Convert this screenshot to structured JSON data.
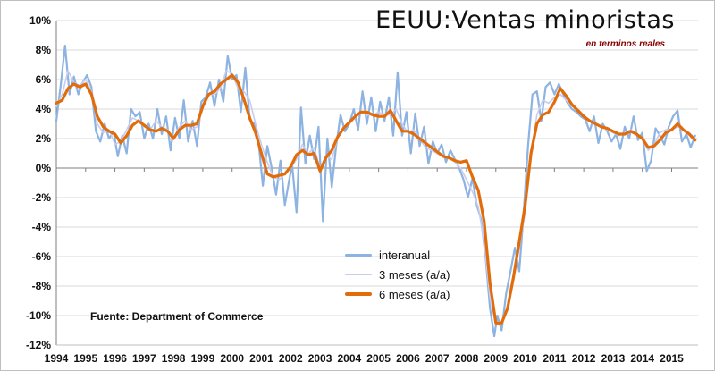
{
  "chart_data": {
    "type": "line",
    "title": "EEUU:Ventas minoristas",
    "subtitle": "en terminos reales",
    "source": "Fuente: Department of Commerce",
    "ylim": [
      -12,
      10
    ],
    "y_ticks": [
      "10%",
      "8%",
      "6%",
      "4%",
      "2%",
      "0%",
      "-2%",
      "-4%",
      "-6%",
      "-8%",
      "-10%",
      "-12%"
    ],
    "x_range": [
      1994.0,
      2015.9
    ],
    "x_ticks": [
      "1994",
      "1995",
      "1996",
      "1997",
      "1998",
      "1999",
      "2000",
      "2001",
      "2002",
      "2003",
      "2004",
      "2005",
      "2006",
      "2007",
      "2008",
      "2009",
      "2010",
      "2011",
      "2012",
      "2013",
      "2014",
      "2015"
    ],
    "grid": "horizontal",
    "legend_position": "center",
    "series": [
      {
        "name": "interanual",
        "color": "#8db3e2",
        "width": 2.2,
        "x": [
          1994.0,
          1994.15,
          1994.3,
          1994.45,
          1994.6,
          1994.75,
          1994.9,
          1995.05,
          1995.2,
          1995.35,
          1995.5,
          1995.65,
          1995.8,
          1995.95,
          1996.1,
          1996.25,
          1996.4,
          1996.55,
          1996.7,
          1996.85,
          1997.0,
          1997.15,
          1997.3,
          1997.45,
          1997.6,
          1997.75,
          1997.9,
          1998.05,
          1998.2,
          1998.35,
          1998.5,
          1998.65,
          1998.8,
          1998.95,
          1999.1,
          1999.25,
          1999.4,
          1999.55,
          1999.7,
          1999.85,
          2000.0,
          2000.15,
          2000.3,
          2000.45,
          2000.6,
          2000.75,
          2000.9,
          2001.05,
          2001.2,
          2001.35,
          2001.5,
          2001.65,
          2001.8,
          2001.95,
          2002.05,
          2002.2,
          2002.35,
          2002.5,
          2002.65,
          2002.8,
          2002.95,
          2003.1,
          2003.25,
          2003.4,
          2003.55,
          2003.7,
          2003.85,
          2004.0,
          2004.15,
          2004.3,
          2004.45,
          2004.6,
          2004.75,
          2004.9,
          2005.05,
          2005.2,
          2005.35,
          2005.5,
          2005.65,
          2005.8,
          2005.95,
          2006.1,
          2006.25,
          2006.4,
          2006.55,
          2006.7,
          2006.85,
          2007.0,
          2007.15,
          2007.3,
          2007.45,
          2007.6,
          2007.75,
          2007.9,
          2008.05,
          2008.2,
          2008.35,
          2008.5,
          2008.65,
          2008.8,
          2008.95,
          2009.05,
          2009.2,
          2009.35,
          2009.5,
          2009.65,
          2009.8,
          2009.95,
          2010.1,
          2010.25,
          2010.4,
          2010.55,
          2010.7,
          2010.85,
          2011.0,
          2011.15,
          2011.3,
          2011.45,
          2011.6,
          2011.75,
          2011.9,
          2012.05,
          2012.2,
          2012.35,
          2012.5,
          2012.65,
          2012.8,
          2012.95,
          2013.1,
          2013.25,
          2013.4,
          2013.55,
          2013.7,
          2013.85,
          2014.0,
          2014.15,
          2014.3,
          2014.45,
          2014.6,
          2014.75,
          2014.9,
          2015.05,
          2015.2,
          2015.35,
          2015.5,
          2015.65,
          2015.8
        ],
        "values": [
          3.2,
          5.6,
          8.3,
          5.0,
          6.2,
          5.0,
          5.8,
          6.3,
          5.5,
          2.5,
          1.8,
          3.0,
          2.0,
          2.5,
          0.8,
          2.2,
          1.0,
          4.0,
          3.5,
          3.8,
          2.0,
          3.0,
          2.0,
          4.0,
          2.3,
          3.5,
          1.2,
          3.4,
          2.0,
          4.6,
          1.8,
          3.2,
          1.5,
          4.5,
          4.8,
          5.8,
          4.2,
          6.0,
          4.5,
          7.6,
          6.0,
          6.3,
          3.8,
          6.8,
          3.3,
          3.0,
          1.8,
          -1.2,
          1.5,
          0.0,
          -1.8,
          0.5,
          -2.5,
          -0.8,
          0.2,
          -3.0,
          4.1,
          0.3,
          2.2,
          0.6,
          2.8,
          -3.6,
          2.0,
          -1.3,
          1.5,
          3.6,
          2.5,
          3.0,
          4.0,
          2.6,
          5.2,
          3.0,
          4.8,
          2.5,
          4.5,
          3.2,
          4.8,
          2.2,
          6.5,
          2.2,
          3.8,
          1.0,
          3.7,
          1.5,
          2.8,
          0.3,
          1.8,
          1.0,
          1.6,
          0.4,
          1.2,
          0.6,
          0.0,
          -0.8,
          -2.0,
          -0.7,
          -2.5,
          -3.5,
          -6.0,
          -9.5,
          -11.4,
          -10.0,
          -11.0,
          -8.5,
          -7.0,
          -5.4,
          -7.0,
          -3.0,
          1.5,
          5.0,
          5.2,
          3.2,
          5.5,
          5.8,
          5.0,
          5.7,
          5.0,
          4.4,
          4.0,
          3.8,
          3.5,
          3.3,
          2.5,
          3.5,
          1.7,
          3.0,
          2.5,
          1.8,
          2.3,
          1.3,
          2.8,
          2.0,
          3.5,
          1.9,
          2.4,
          -0.2,
          0.5,
          2.7,
          2.2,
          1.6,
          2.8,
          3.5,
          3.9,
          1.8,
          2.3,
          1.4,
          2.2
        ],
        "dash": ""
      },
      {
        "name": "3 meses (a/a)",
        "color": "#c8cdf0",
        "width": 1.6,
        "x": [
          1994.0,
          1994.2,
          1994.4,
          1994.6,
          1994.8,
          1995.0,
          1995.2,
          1995.4,
          1995.6,
          1995.8,
          1996.0,
          1996.2,
          1996.4,
          1996.6,
          1996.8,
          1997.0,
          1997.2,
          1997.4,
          1997.6,
          1997.8,
          1998.0,
          1998.2,
          1998.4,
          1998.6,
          1998.8,
          1999.0,
          1999.2,
          1999.4,
          1999.6,
          1999.8,
          2000.0,
          2000.2,
          2000.4,
          2000.6,
          2000.8,
          2001.0,
          2001.2,
          2001.4,
          2001.6,
          2001.8,
          2002.0,
          2002.2,
          2002.4,
          2002.6,
          2002.8,
          2003.0,
          2003.2,
          2003.4,
          2003.6,
          2003.8,
          2004.0,
          2004.2,
          2004.4,
          2004.6,
          2004.8,
          2005.0,
          2005.2,
          2005.4,
          2005.6,
          2005.8,
          2006.0,
          2006.2,
          2006.4,
          2006.6,
          2006.8,
          2007.0,
          2007.2,
          2007.4,
          2007.6,
          2007.8,
          2008.0,
          2008.2,
          2008.4,
          2008.6,
          2008.8,
          2009.0,
          2009.2,
          2009.4,
          2009.6,
          2009.8,
          2010.0,
          2010.2,
          2010.4,
          2010.6,
          2010.8,
          2011.0,
          2011.2,
          2011.4,
          2011.6,
          2011.8,
          2012.0,
          2012.2,
          2012.4,
          2012.6,
          2012.8,
          2013.0,
          2013.2,
          2013.4,
          2013.6,
          2013.8,
          2014.0,
          2014.2,
          2014.4,
          2014.6,
          2014.8,
          2015.0,
          2015.2,
          2015.4,
          2015.6,
          2015.8
        ],
        "values": [
          4.2,
          5.0,
          6.6,
          5.8,
          5.6,
          6.0,
          5.2,
          3.0,
          2.4,
          2.6,
          1.6,
          1.8,
          2.6,
          3.4,
          3.2,
          2.8,
          2.6,
          3.2,
          2.8,
          2.6,
          2.0,
          2.8,
          3.2,
          2.6,
          2.8,
          4.0,
          5.0,
          5.0,
          5.4,
          6.6,
          6.4,
          5.4,
          5.2,
          4.6,
          3.0,
          1.6,
          0.4,
          -0.6,
          -0.8,
          -0.4,
          0.0,
          0.6,
          1.6,
          1.0,
          1.4,
          0.0,
          0.8,
          0.6,
          2.0,
          2.8,
          3.0,
          3.4,
          3.8,
          3.6,
          3.6,
          3.8,
          3.6,
          3.6,
          4.0,
          3.0,
          2.4,
          2.6,
          2.0,
          1.4,
          1.2,
          1.0,
          0.8,
          0.8,
          0.4,
          0.0,
          -0.8,
          -1.6,
          -2.6,
          -5.0,
          -8.8,
          -10.6,
          -10.6,
          -9.6,
          -7.6,
          -5.4,
          -3.0,
          1.0,
          3.6,
          4.6,
          4.4,
          4.8,
          5.0,
          4.6,
          4.2,
          4.0,
          3.6,
          3.2,
          3.0,
          2.8,
          2.6,
          2.4,
          2.2,
          2.4,
          2.6,
          2.4,
          2.0,
          1.2,
          1.6,
          2.4,
          2.6,
          2.6,
          2.8,
          2.6,
          2.4,
          2.0
        ],
        "dash": ""
      },
      {
        "name": "6 meses (a/a)",
        "color": "#e36c0a",
        "width": 3.2,
        "x": [
          1994.0,
          1994.2,
          1994.4,
          1994.6,
          1994.8,
          1995.0,
          1995.2,
          1995.4,
          1995.6,
          1995.8,
          1996.0,
          1996.2,
          1996.4,
          1996.6,
          1996.8,
          1997.0,
          1997.2,
          1997.4,
          1997.6,
          1997.8,
          1998.0,
          1998.2,
          1998.4,
          1998.6,
          1998.8,
          1999.0,
          1999.2,
          1999.4,
          1999.6,
          1999.8,
          2000.0,
          2000.2,
          2000.4,
          2000.6,
          2000.8,
          2001.0,
          2001.2,
          2001.4,
          2001.6,
          2001.8,
          2002.0,
          2002.2,
          2002.4,
          2002.6,
          2002.8,
          2003.0,
          2003.2,
          2003.4,
          2003.6,
          2003.8,
          2004.0,
          2004.2,
          2004.4,
          2004.6,
          2004.8,
          2005.0,
          2005.2,
          2005.4,
          2005.6,
          2005.8,
          2006.0,
          2006.2,
          2006.4,
          2006.6,
          2006.8,
          2007.0,
          2007.2,
          2007.4,
          2007.6,
          2007.8,
          2008.0,
          2008.2,
          2008.4,
          2008.6,
          2008.8,
          2009.0,
          2009.2,
          2009.4,
          2009.6,
          2009.8,
          2010.0,
          2010.2,
          2010.4,
          2010.6,
          2010.8,
          2011.0,
          2011.2,
          2011.4,
          2011.6,
          2011.8,
          2012.0,
          2012.2,
          2012.4,
          2012.6,
          2012.8,
          2013.0,
          2013.2,
          2013.4,
          2013.6,
          2013.8,
          2014.0,
          2014.2,
          2014.4,
          2014.6,
          2014.8,
          2015.0,
          2015.2,
          2015.4,
          2015.6,
          2015.8
        ],
        "values": [
          4.4,
          4.6,
          5.4,
          5.7,
          5.5,
          5.7,
          5.0,
          3.5,
          2.8,
          2.5,
          2.3,
          1.7,
          2.2,
          2.9,
          3.2,
          2.9,
          2.6,
          2.5,
          2.7,
          2.5,
          2.0,
          2.6,
          2.9,
          2.9,
          3.0,
          4.2,
          5.0,
          5.2,
          5.7,
          6.0,
          6.3,
          5.8,
          4.7,
          3.4,
          2.4,
          1.0,
          -0.4,
          -0.6,
          -0.5,
          -0.4,
          0.1,
          0.9,
          1.2,
          0.9,
          1.0,
          -0.2,
          0.7,
          1.2,
          2.1,
          2.7,
          3.1,
          3.5,
          3.8,
          3.8,
          3.6,
          3.5,
          3.5,
          3.9,
          3.2,
          2.5,
          2.5,
          2.3,
          2.0,
          1.7,
          1.4,
          1.1,
          0.8,
          0.7,
          0.5,
          0.4,
          0.5,
          -0.6,
          -1.5,
          -3.6,
          -7.8,
          -10.5,
          -10.5,
          -9.5,
          -7.4,
          -5.0,
          -2.5,
          1.0,
          3.0,
          3.6,
          3.8,
          4.5,
          5.4,
          4.9,
          4.3,
          3.9,
          3.5,
          3.2,
          3.0,
          2.8,
          2.7,
          2.5,
          2.3,
          2.3,
          2.5,
          2.3,
          2.0,
          1.4,
          1.5,
          1.9,
          2.4,
          2.6,
          3.0,
          2.6,
          2.3,
          1.9
        ],
        "dash": ""
      }
    ]
  }
}
